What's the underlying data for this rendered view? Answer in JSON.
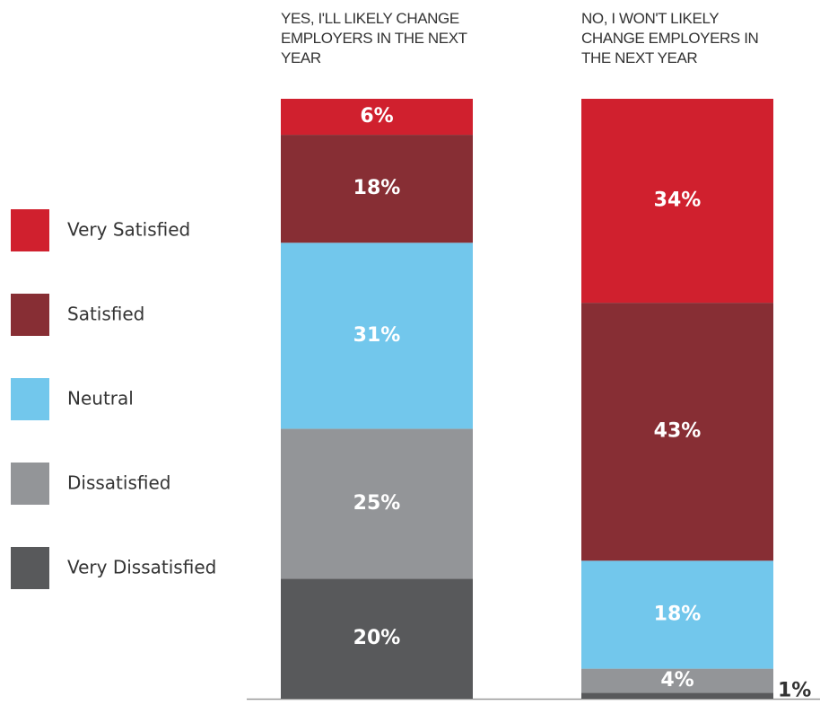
{
  "chart_data": {
    "type": "stacked_bar",
    "categories": [
      "YES, I'LL LIKELY CHANGE EMPLOYERS IN THE NEXT YEAR",
      "NO, I WON'T LIKELY CHANGE EMPLOYERS IN THE NEXT YEAR"
    ],
    "series": [
      {
        "name": "Very Satisfied",
        "color": "#d0202e",
        "values": [
          6,
          34
        ],
        "value_labels": [
          "6%",
          "34%"
        ]
      },
      {
        "name": "Satisfied",
        "color": "#872e34",
        "values": [
          18,
          43
        ],
        "value_labels": [
          "18%",
          "43%"
        ]
      },
      {
        "name": "Neutral",
        "color": "#72c7ec",
        "values": [
          31,
          18
        ],
        "value_labels": [
          "31%",
          "18%"
        ]
      },
      {
        "name": "Dissatisfied",
        "color": "#939598",
        "values": [
          25,
          4
        ],
        "value_labels": [
          "25%",
          "4%"
        ]
      },
      {
        "name": "Very Dissatisfied",
        "color": "#58595b",
        "values": [
          20,
          1
        ],
        "value_labels": [
          "20%",
          "1%"
        ]
      }
    ]
  }
}
